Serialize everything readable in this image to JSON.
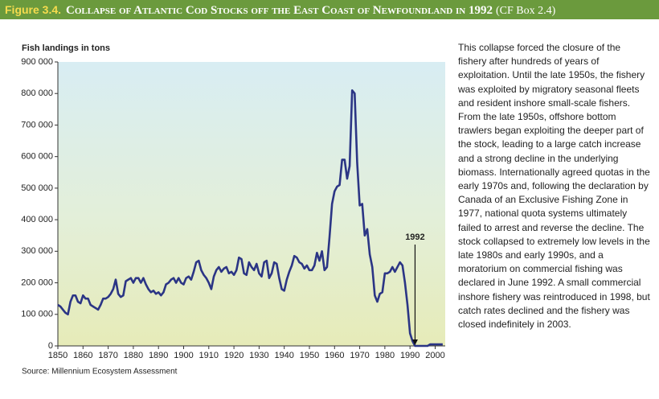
{
  "chart_data": {
    "type": "line",
    "figure_label": "Figure 3.4.",
    "title": "Collapse of Atlantic Cod Stocks off the East Coast of Newfoundland in 1992",
    "title_note": "(CF Box 2.4)",
    "y_label": "Fish landings in tons",
    "source": "Source: Millennium Ecosystem Assessment",
    "caption": "This collapse forced the closure of the fishery after hundreds of years of exploitation. Until the late 1950s, the fishery was exploited by migratory seasonal fleets and resident inshore small-scale fishers. From the late 1950s, offshore bottom trawlers began exploiting the deeper part of the stock, leading to a large catch increase and a strong decline in the underlying biomass. Internationally agreed quotas in the early 1970s and, following the declaration by Canada of an Exclusive Fishing Zone in 1977, national quota systems ultimately failed to arrest and reverse the decline. The stock collapsed to extremely low levels in the late 1980s and early 1990s, and a moratorium on commercial fishing was declared in June 1992. A small commercial inshore fishery was reintroduced in 1998, but catch rates declined and the fishery was closed indefinitely in 2003.",
    "color": "#2b3585",
    "x": [
      1850,
      1851,
      1852,
      1853,
      1854,
      1855,
      1856,
      1857,
      1858,
      1859,
      1860,
      1861,
      1862,
      1863,
      1864,
      1865,
      1866,
      1867,
      1868,
      1869,
      1870,
      1871,
      1872,
      1873,
      1874,
      1875,
      1876,
      1877,
      1878,
      1879,
      1880,
      1881,
      1882,
      1883,
      1884,
      1885,
      1886,
      1887,
      1888,
      1889,
      1890,
      1891,
      1892,
      1893,
      1894,
      1895,
      1896,
      1897,
      1898,
      1899,
      1900,
      1901,
      1902,
      1903,
      1904,
      1905,
      1906,
      1907,
      1908,
      1909,
      1910,
      1911,
      1912,
      1913,
      1914,
      1915,
      1916,
      1917,
      1918,
      1919,
      1920,
      1921,
      1922,
      1923,
      1924,
      1925,
      1926,
      1927,
      1928,
      1929,
      1930,
      1931,
      1932,
      1933,
      1934,
      1935,
      1936,
      1937,
      1938,
      1939,
      1940,
      1941,
      1942,
      1943,
      1944,
      1945,
      1946,
      1947,
      1948,
      1949,
      1950,
      1951,
      1952,
      1953,
      1954,
      1955,
      1956,
      1957,
      1958,
      1959,
      1960,
      1961,
      1962,
      1963,
      1964,
      1965,
      1966,
      1967,
      1968,
      1969,
      1970,
      1971,
      1972,
      1973,
      1974,
      1975,
      1976,
      1977,
      1978,
      1979,
      1980,
      1981,
      1982,
      1983,
      1984,
      1985,
      1986,
      1987,
      1988,
      1989,
      1990,
      1991,
      1992,
      1993,
      1994,
      1995,
      1996,
      1997,
      1998,
      1999,
      2000,
      2001,
      2002,
      2003
    ],
    "values": [
      130000,
      125000,
      115000,
      105000,
      100000,
      140000,
      160000,
      160000,
      140000,
      135000,
      160000,
      150000,
      150000,
      130000,
      125000,
      120000,
      115000,
      130000,
      150000,
      150000,
      155000,
      165000,
      180000,
      210000,
      165000,
      155000,
      160000,
      205000,
      210000,
      215000,
      200000,
      215000,
      215000,
      200000,
      215000,
      195000,
      180000,
      170000,
      175000,
      165000,
      170000,
      160000,
      170000,
      195000,
      200000,
      210000,
      215000,
      200000,
      215000,
      200000,
      195000,
      215000,
      220000,
      210000,
      235000,
      265000,
      270000,
      240000,
      225000,
      215000,
      200000,
      180000,
      220000,
      240000,
      250000,
      235000,
      245000,
      250000,
      230000,
      235000,
      225000,
      240000,
      280000,
      275000,
      230000,
      225000,
      265000,
      250000,
      240000,
      260000,
      230000,
      220000,
      265000,
      270000,
      215000,
      230000,
      265000,
      260000,
      215000,
      180000,
      175000,
      210000,
      235000,
      255000,
      285000,
      280000,
      265000,
      260000,
      245000,
      255000,
      240000,
      240000,
      255000,
      295000,
      270000,
      300000,
      240000,
      250000,
      345000,
      450000,
      490000,
      505000,
      510000,
      590000,
      590000,
      530000,
      570000,
      810000,
      800000,
      580000,
      445000,
      450000,
      350000,
      370000,
      290000,
      250000,
      160000,
      140000,
      165000,
      170000,
      230000,
      230000,
      235000,
      250000,
      235000,
      250000,
      265000,
      255000,
      200000,
      130000,
      40000,
      15000,
      0,
      0,
      0,
      0,
      0,
      0,
      5000,
      5000,
      5000,
      5000,
      5000,
      5000
    ],
    "xlim": [
      1850,
      2004
    ],
    "xticks": [
      1850,
      1860,
      1870,
      1880,
      1890,
      1900,
      1910,
      1920,
      1930,
      1940,
      1950,
      1960,
      1970,
      1980,
      1990,
      2000
    ],
    "ylim": [
      0,
      900000
    ],
    "yticks": [
      0,
      {
        "value": 100000,
        "label": "100 000"
      },
      {
        "value": 200000,
        "label": "200 000"
      },
      {
        "value": 300000,
        "label": "300 000"
      },
      {
        "value": 400000,
        "label": "400 000"
      },
      {
        "value": 500000,
        "label": "500 000"
      },
      {
        "value": 600000,
        "label": "600 000"
      },
      {
        "value": 700000,
        "label": "700 000"
      },
      {
        "value": 800000,
        "label": "800 000"
      },
      {
        "value": 900000,
        "label": "900 000"
      }
    ],
    "annotations": [
      {
        "text": "1992",
        "x": 1992
      }
    ]
  }
}
